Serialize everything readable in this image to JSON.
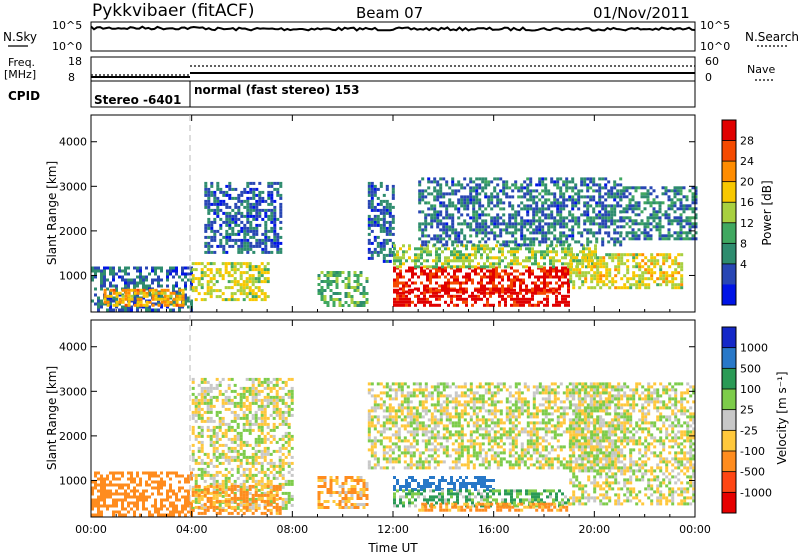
{
  "header": {
    "radar": "Pykkvibaer (fitACF)",
    "beam": "Beam 07",
    "date": "01/Nov/2011"
  },
  "top_panels": {
    "nsky_label": "N.Sky",
    "nsky_ticks": [
      "10^5",
      "10^0"
    ],
    "nsearch_label": "N.Search",
    "nsearch_ticks": [
      "10^5",
      "10^0"
    ],
    "freq_label_1": "Freq.",
    "freq_label_2": "[MHz]",
    "freq_ticks": [
      "18",
      "8"
    ],
    "nave_label": "Nave",
    "nave_ticks": [
      "60",
      "0"
    ],
    "cpid_label": "CPID",
    "cpid_segments": [
      {
        "start_h": 0,
        "end_h": 4,
        "text": "Stereo -6401"
      },
      {
        "start_h": 4,
        "end_h": 24,
        "text": "normal (fast stereo) 153"
      }
    ]
  },
  "power_colorbar": {
    "label": "Power [dB]",
    "ticks": [
      "28",
      "24",
      "20",
      "16",
      "12",
      "8",
      "4"
    ],
    "colors": [
      "#e00000",
      "#f54a00",
      "#ff8c00",
      "#f8c800",
      "#a8d040",
      "#40a860",
      "#2e8c6e",
      "#2846b4",
      "#0014e6"
    ]
  },
  "velocity_colorbar": {
    "label": "Velocity [m s⁻¹]",
    "ticks": [
      "1000",
      "500",
      "100",
      "25",
      "-25",
      "-100",
      "-500",
      "-1000"
    ],
    "colors": [
      "#1428c8",
      "#2878c8",
      "#2a9a55",
      "#7dcc4a",
      "#c8c8c8",
      "#ffc83c",
      "#ff8c1e",
      "#ff4614",
      "#e60000"
    ]
  },
  "chart_data": [
    {
      "type": "heatmap",
      "title": "Power",
      "ylabel": "Slant Range [km]",
      "xlabel": "",
      "x_ticks": [
        "00:00",
        "04:00",
        "08:00",
        "12:00",
        "16:00",
        "20:00",
        "00:00"
      ],
      "y_ticks": [
        "1000",
        "2000",
        "3000",
        "4000"
      ],
      "xlim_hours": [
        0,
        24
      ],
      "ylim_km": [
        180,
        4600
      ],
      "zlim_db": [
        0,
        30
      ],
      "regions": [
        {
          "t0": 0,
          "t1": 4,
          "r0": 220,
          "r1": 1200,
          "value": 6
        },
        {
          "t0": 0.5,
          "t1": 3.6,
          "r0": 350,
          "r1": 700,
          "value": 20
        },
        {
          "t0": 4,
          "t1": 7,
          "r0": 450,
          "r1": 1300,
          "value": 16
        },
        {
          "t0": 4.5,
          "t1": 7.5,
          "r0": 1500,
          "r1": 3100,
          "value": 6
        },
        {
          "t0": 9,
          "t1": 11,
          "r0": 350,
          "r1": 1100,
          "value": 12
        },
        {
          "t0": 11,
          "t1": 12,
          "r0": 1300,
          "r1": 3100,
          "value": 6
        },
        {
          "t0": 12,
          "t1": 19,
          "r0": 600,
          "r1": 1200,
          "value": 28
        },
        {
          "t0": 12,
          "t1": 19,
          "r0": 320,
          "r1": 700,
          "value": 29
        },
        {
          "t0": 12,
          "t1": 20,
          "r0": 1200,
          "r1": 1700,
          "value": 14
        },
        {
          "t0": 13,
          "t1": 21,
          "r0": 1700,
          "r1": 3200,
          "value": 7
        },
        {
          "t0": 19,
          "t1": 23.5,
          "r0": 700,
          "r1": 1500,
          "value": 17
        },
        {
          "t0": 21,
          "t1": 24,
          "r0": 1800,
          "r1": 3000,
          "value": 8
        }
      ]
    },
    {
      "type": "heatmap",
      "title": "Velocity",
      "ylabel": "Slant Range [km]",
      "xlabel": "Time UT",
      "x_ticks": [
        "00:00",
        "04:00",
        "08:00",
        "12:00",
        "16:00",
        "20:00",
        "00:00"
      ],
      "y_ticks": [
        "1000",
        "2000",
        "3000",
        "4000"
      ],
      "xlim_hours": [
        0,
        24
      ],
      "ylim_km": [
        180,
        4600
      ],
      "zlim_ms": [
        -1000,
        1000
      ],
      "regions": [
        {
          "t0": 0,
          "t1": 4,
          "r0": 220,
          "r1": 1200,
          "value": -200
        },
        {
          "t0": 4,
          "t1": 8,
          "r0": 400,
          "r1": 3300,
          "value": 0
        },
        {
          "t0": 4,
          "t1": 7.5,
          "r0": 250,
          "r1": 900,
          "value": -150
        },
        {
          "t0": 9,
          "t1": 11,
          "r0": 400,
          "r1": 1100,
          "value": -100
        },
        {
          "t0": 11,
          "t1": 21,
          "r0": 1300,
          "r1": 3200,
          "value": 0
        },
        {
          "t0": 12,
          "t1": 16,
          "r0": 800,
          "r1": 1100,
          "value": 700
        },
        {
          "t0": 12,
          "t1": 19,
          "r0": 450,
          "r1": 800,
          "value": 100
        },
        {
          "t0": 13,
          "t1": 19,
          "r0": 320,
          "r1": 500,
          "value": -150
        },
        {
          "t0": 19,
          "t1": 24,
          "r0": 500,
          "r1": 3200,
          "value": 0
        }
      ]
    }
  ]
}
